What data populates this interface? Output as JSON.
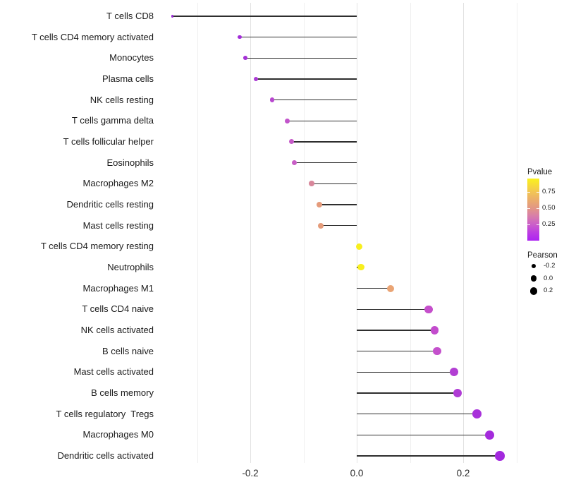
{
  "chart_data": {
    "type": "scatter",
    "variant": "lollipop",
    "orientation": "horizontal",
    "title": "",
    "xlabel": "",
    "ylabel": "",
    "xlim": [
      -0.376,
      0.306
    ],
    "x_major_ticks": [
      -0.2,
      0.0,
      0.2
    ],
    "x_tick_labels": [
      "-0.2",
      "0.0",
      "0.2"
    ],
    "x_minor_gridlines": [
      -0.3,
      -0.1,
      0.1,
      0.3
    ],
    "baseline": 0.0,
    "grid": "vertical-only",
    "points": [
      {
        "label": "T cells CD8",
        "pearson": -0.346,
        "color": "#9a2bd4"
      },
      {
        "label": "T cells CD4 memory activated",
        "pearson": -0.22,
        "color": "#a22cd8"
      },
      {
        "label": "Monocytes",
        "pearson": -0.209,
        "color": "#a531d7"
      },
      {
        "label": "Plasma cells",
        "pearson": -0.189,
        "color": "#ab3ad4"
      },
      {
        "label": "NK cells resting",
        "pearson": -0.159,
        "color": "#b847cf"
      },
      {
        "label": "T cells gamma delta",
        "pearson": -0.131,
        "color": "#c254cb"
      },
      {
        "label": "T cells follicular helper",
        "pearson": -0.122,
        "color": "#c65ac8"
      },
      {
        "label": "Eosinophils",
        "pearson": -0.117,
        "color": "#c85ec6"
      },
      {
        "label": "Macrophages M2",
        "pearson": -0.085,
        "color": "#d8879b"
      },
      {
        "label": "Dendritic cells resting",
        "pearson": -0.07,
        "color": "#e59b7b"
      },
      {
        "label": "Mast cells resting",
        "pearson": -0.068,
        "color": "#e59c7a"
      },
      {
        "label": "T cells CD4 memory resting",
        "pearson": 0.005,
        "color": "#f8ef1e"
      },
      {
        "label": "Neutrophils",
        "pearson": 0.008,
        "color": "#f8ef1e"
      },
      {
        "label": "Macrophages M1",
        "pearson": 0.064,
        "color": "#eaa474"
      },
      {
        "label": "T cells CD4 naive",
        "pearson": 0.135,
        "color": "#c54fcb"
      },
      {
        "label": "NK cells activated",
        "pearson": 0.146,
        "color": "#c34ccd"
      },
      {
        "label": "B cells naive",
        "pearson": 0.151,
        "color": "#c450cc"
      },
      {
        "label": "Mast cells activated",
        "pearson": 0.183,
        "color": "#b23fd3"
      },
      {
        "label": "B cells memory",
        "pearson": 0.189,
        "color": "#b03cd5"
      },
      {
        "label": "T cells regulatory  Tregs",
        "pearson": 0.226,
        "color": "#a831da"
      },
      {
        "label": "Macrophages M0",
        "pearson": 0.25,
        "color": "#a42bdc"
      },
      {
        "label": "Dendritic cells activated",
        "pearson": 0.269,
        "color": "#a329de"
      }
    ],
    "legends": {
      "pvalue": {
        "title": "Pvalue",
        "ticks": [
          0.75,
          0.5,
          0.25
        ],
        "tick_labels": [
          "0.75",
          "0.50",
          "0.25"
        ],
        "range": [
          0,
          0.956
        ],
        "gradient_bottom_to_top": [
          {
            "pos": 0,
            "color": "#ac24f2"
          },
          {
            "pos": 0.13,
            "color": "#bc3de2"
          },
          {
            "pos": 0.26,
            "color": "#cb5fc9"
          },
          {
            "pos": 0.4,
            "color": "#d87fa9"
          },
          {
            "pos": 0.52,
            "color": "#e29687"
          },
          {
            "pos": 0.65,
            "color": "#eaac6c"
          },
          {
            "pos": 0.78,
            "color": "#f2c455"
          },
          {
            "pos": 0.9,
            "color": "#f7dd36"
          },
          {
            "pos": 1,
            "color": "#faf21e"
          }
        ]
      },
      "pearson": {
        "title": "Pearson",
        "items": [
          {
            "label": "-0.2",
            "diameter": 6.5
          },
          {
            "label": "0.0",
            "diameter": 8.5
          },
          {
            "label": "0.2",
            "diameter": 10.5
          }
        ]
      }
    }
  },
  "colors": {
    "background": "#ffffff",
    "segment": "#2e2e2e",
    "grid_major": "#e3e3e3",
    "grid_minor": "#f0f0f0",
    "axis_text": "#1a1a1a",
    "legend_dot": "#000000"
  }
}
